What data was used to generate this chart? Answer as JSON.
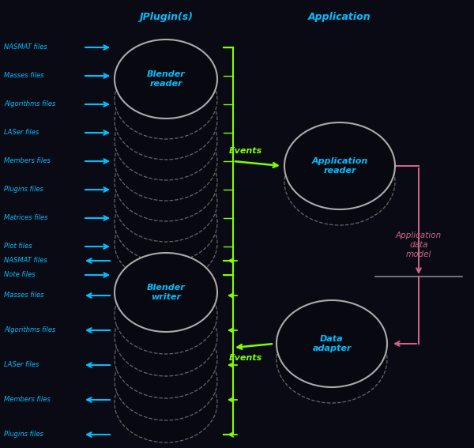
{
  "title_jplugin": "JPlugin(s)",
  "title_application": "Application",
  "bg_color": "#0a0a14",
  "text_color_cyan": "#00BFFF",
  "text_color_green": "#7FFF00",
  "text_color_pink": "#CC6688",
  "reader_files": [
    "NASMAT files",
    "Masses files",
    "Algorithms files",
    "LASer files",
    "Members files",
    "Plugins files",
    "Matrices files",
    "Plot files",
    "Note files"
  ],
  "writer_files": [
    "NASMAT files",
    "Masses files",
    "Algorithms files",
    "LASer files",
    "Members files",
    "Plugins files"
  ],
  "reader_label": "Blender\nreader",
  "writer_label": "Blender\nwriter",
  "app_reader_label": "Application\nreader",
  "data_adapter_label": "Data\nadapter",
  "app_model_label": "Application\ndata\nmodel",
  "events_label": "Events",
  "arrow_cyan": "#00BFFF",
  "arrow_green": "#7FFF00",
  "arrow_pink": "#CC6688"
}
